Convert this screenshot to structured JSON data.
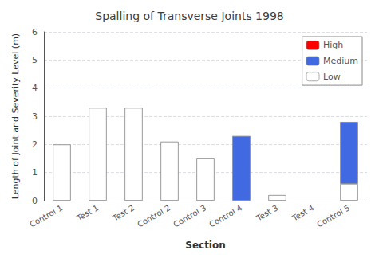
{
  "chart_data": {
    "type": "bar",
    "stacked": true,
    "title": "Spalling of Transverse Joints 1998",
    "xlabel": "Section",
    "ylabel": "Length of Joint and Severity Level (m)",
    "categories": [
      "Control 1",
      "Test 1",
      "Test 2",
      "Control 2",
      "Control 3",
      "Control 4",
      "Test 3",
      "Test 4",
      "Control 5"
    ],
    "series": [
      {
        "name": "Low",
        "color": "#ffffff",
        "values": [
          2.0,
          3.3,
          3.3,
          2.1,
          1.5,
          0.0,
          0.2,
          0.0,
          0.6
        ]
      },
      {
        "name": "Medium",
        "color": "#4169e1",
        "values": [
          0.0,
          0.0,
          0.0,
          0.0,
          0.0,
          2.3,
          0.0,
          0.0,
          2.2
        ]
      },
      {
        "name": "High",
        "color": "#ff0000",
        "values": [
          0.0,
          0.0,
          0.0,
          0.0,
          0.0,
          0.0,
          0.0,
          0.0,
          0.0
        ]
      }
    ],
    "ylim": [
      0,
      6
    ],
    "yticks": [
      0,
      1,
      2,
      3,
      4,
      5,
      6
    ],
    "grid": true,
    "legend": "upper right"
  }
}
